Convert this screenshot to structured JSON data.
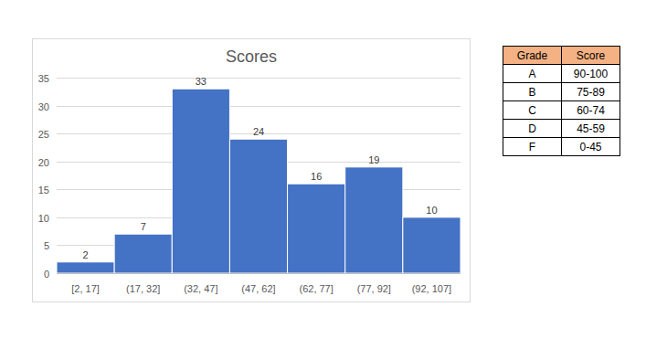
{
  "chart_data": {
    "type": "histogram",
    "title": "Scores",
    "categories": [
      "[2, 17]",
      "(17, 32]",
      "(32, 47]",
      "(47, 62]",
      "(62, 77]",
      "(77, 92]",
      "(92, 107]"
    ],
    "bins": [
      2,
      17,
      32,
      47,
      62,
      77,
      92,
      107
    ],
    "values": [
      2,
      7,
      33,
      24,
      16,
      19,
      10
    ],
    "color": "#4472c4",
    "xlim": [
      2,
      107
    ],
    "ylim": [
      0,
      35
    ],
    "yticks": [
      0,
      5,
      10,
      15,
      20,
      25,
      30,
      35
    ],
    "grid": true,
    "data_labels": true
  },
  "table": {
    "header": [
      "Grade",
      "Score"
    ],
    "rows": [
      [
        "A",
        "90-100"
      ],
      [
        "B",
        "75-89"
      ],
      [
        "C",
        "60-74"
      ],
      [
        "D",
        "45-59"
      ],
      [
        "F",
        "0-45"
      ]
    ]
  }
}
